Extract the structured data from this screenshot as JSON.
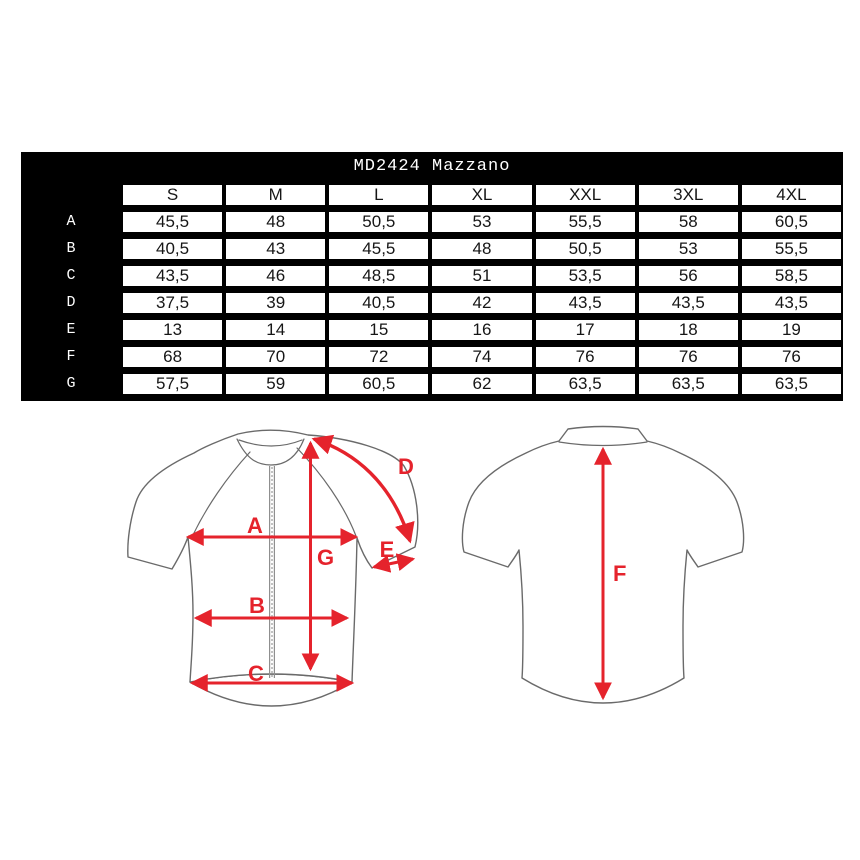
{
  "size_chart": {
    "title": "MD2424 Mazzano",
    "columns": [
      "S",
      "M",
      "L",
      "XL",
      "XXL",
      "3XL",
      "4XL"
    ],
    "rows": [
      {
        "label": "A",
        "values": [
          "45,5",
          "48",
          "50,5",
          "53",
          "55,5",
          "58",
          "60,5"
        ]
      },
      {
        "label": "B",
        "values": [
          "40,5",
          "43",
          "45,5",
          "48",
          "50,5",
          "53",
          "55,5"
        ]
      },
      {
        "label": "C",
        "values": [
          "43,5",
          "46",
          "48,5",
          "51",
          "53,5",
          "56",
          "58,5"
        ]
      },
      {
        "label": "D",
        "values": [
          "37,5",
          "39",
          "40,5",
          "42",
          "43,5",
          "43,5",
          "43,5"
        ]
      },
      {
        "label": "E",
        "values": [
          "13",
          "14",
          "15",
          "16",
          "17",
          "18",
          "19"
        ]
      },
      {
        "label": "F",
        "values": [
          "68",
          "70",
          "72",
          "74",
          "76",
          "76",
          "76"
        ]
      },
      {
        "label": "G",
        "values": [
          "57,5",
          "59",
          "60,5",
          "62",
          "63,5",
          "63,5",
          "63,5"
        ]
      }
    ]
  },
  "diagram": {
    "labels": {
      "A": "A",
      "B": "B",
      "C": "C",
      "D": "D",
      "E": "E",
      "F": "F",
      "G": "G"
    },
    "front_view_labels": [
      "A",
      "B",
      "C",
      "D",
      "E",
      "G"
    ],
    "back_view_labels": [
      "F"
    ],
    "arrow_color": "#e5232c",
    "outline_color": "#6a6a6a"
  },
  "colors": {
    "table_background": "#000000",
    "cell_background": "#ffffff",
    "cell_text": "#161616",
    "title_text": "#ffffff"
  }
}
